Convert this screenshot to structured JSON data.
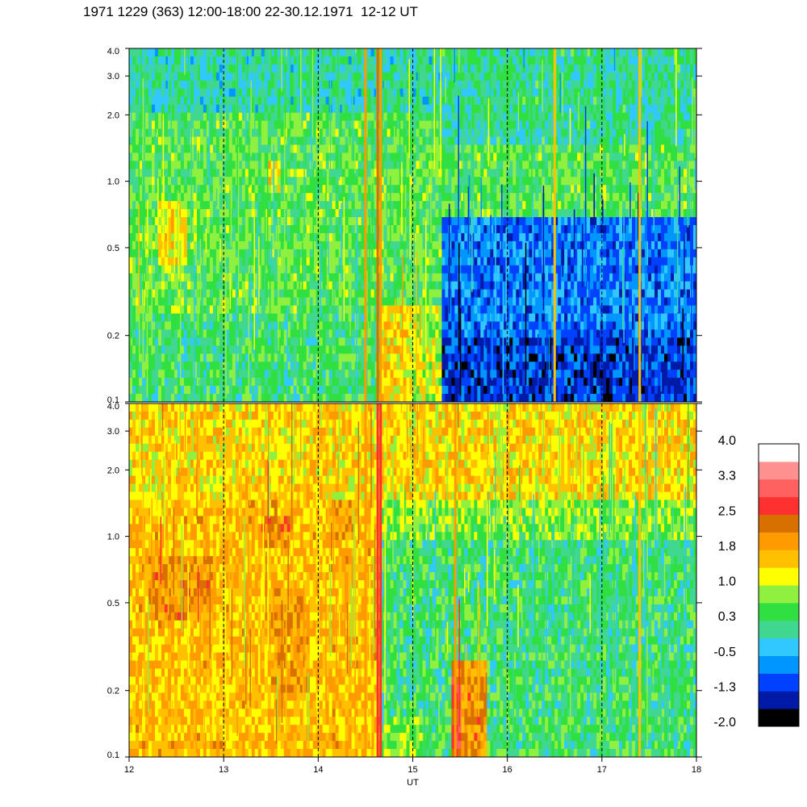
{
  "title": "1971 1229 (363) 12:00-18:00 22-30.12.1971  12-12 UT",
  "chart_data": {
    "type": "heatmap",
    "xlabel": "UT",
    "x_ticks": [
      "12",
      "13",
      "14",
      "15",
      "16",
      "17",
      "18"
    ],
    "xlim": [
      12,
      18
    ],
    "y_scale": "log",
    "ylim": [
      0.1,
      4.0
    ],
    "y_ticks": [
      "0.1",
      "0.2",
      "0.5",
      "1.0",
      "2.0",
      "3.0",
      "4.0"
    ],
    "colorbar": {
      "labels": [
        "4.0",
        "3.3",
        "2.5",
        "1.8",
        "1.0",
        "0.3",
        "-0.5",
        "-1.3",
        "-2.0"
      ],
      "colors": [
        "#000000",
        "#001aa8",
        "#0040ff",
        "#0096ff",
        "#30c8ff",
        "#40d890",
        "#30e040",
        "#90f040",
        "#ffff00",
        "#ffc000",
        "#ff9a00",
        "#d87000",
        "#ff3030",
        "#ff6060",
        "#ff9090",
        "#ffffff"
      ]
    },
    "panels": [
      {
        "name": "top",
        "background_level": 0.5,
        "regions": [
          {
            "x": [
              12.0,
              12.7
            ],
            "y": [
              0.1,
              0.7
            ],
            "level": 0.6
          },
          {
            "x": [
              12.3,
              12.6
            ],
            "y": [
              0.4,
              0.8
            ],
            "level": 1.3
          },
          {
            "x": [
              13.45,
              13.6
            ],
            "y": [
              0.9,
              1.2
            ],
            "level": 1.3
          },
          {
            "x": [
              12.0,
              15.3
            ],
            "y": [
              0.1,
              0.25
            ],
            "level": 0.3
          },
          {
            "x": [
              15.3,
              18.0
            ],
            "y": [
              0.1,
              0.7
            ],
            "level": -0.8
          },
          {
            "x": [
              15.3,
              18.0
            ],
            "y": [
              0.1,
              0.2
            ],
            "level": -1.2
          },
          {
            "x": [
              14.65,
              15.0
            ],
            "y": [
              0.1,
              0.28
            ],
            "level": 1.4
          },
          {
            "x": [
              15.0,
              15.3
            ],
            "y": [
              0.1,
              0.28
            ],
            "level": 1.0
          },
          {
            "x": [
              15.3,
              18.0
            ],
            "y": [
              1.5,
              4.0
            ],
            "level": 0.1
          },
          {
            "x": [
              12.0,
              15.3
            ],
            "y": [
              2.0,
              4.0
            ],
            "level": 0.0
          }
        ],
        "spikes": [
          {
            "x": 14.5,
            "level": 1.9
          },
          {
            "x": 14.63,
            "level": 2.3
          },
          {
            "x": 14.66,
            "level": 2.1
          },
          {
            "x": 16.5,
            "level": 1.4
          },
          {
            "x": 17.4,
            "level": 1.5
          }
        ]
      },
      {
        "name": "bottom",
        "background_level": 0.7,
        "regions": [
          {
            "x": [
              12.0,
              14.65
            ],
            "y": [
              0.1,
              1.5
            ],
            "level": 1.6
          },
          {
            "x": [
              12.2,
              12.9
            ],
            "y": [
              0.4,
              0.8
            ],
            "level": 2.0
          },
          {
            "x": [
              13.4,
              13.7
            ],
            "y": [
              0.85,
              1.2
            ],
            "level": 2.1
          },
          {
            "x": [
              14.1,
              14.4
            ],
            "y": [
              1.0,
              1.5
            ],
            "level": 1.9
          },
          {
            "x": [
              13.5,
              13.9
            ],
            "y": [
              0.2,
              0.6
            ],
            "level": 1.9
          },
          {
            "x": [
              12.0,
              18.0
            ],
            "y": [
              1.5,
              4.0
            ],
            "level": 1.4
          },
          {
            "x": [
              14.65,
              18.0
            ],
            "y": [
              0.1,
              1.0
            ],
            "level": 0.3
          },
          {
            "x": [
              14.7,
              15.1
            ],
            "y": [
              0.1,
              0.15
            ],
            "level": 0.8
          },
          {
            "x": [
              15.4,
              15.8
            ],
            "y": [
              0.1,
              0.27
            ],
            "level": 2.0
          },
          {
            "x": [
              15.4,
              15.52
            ],
            "y": [
              0.1,
              0.24
            ],
            "level": 2.7
          }
        ],
        "spikes": [
          {
            "x": 14.5,
            "level": 1.9
          },
          {
            "x": 14.63,
            "level": 2.6
          },
          {
            "x": 14.66,
            "level": 2.6
          },
          {
            "x": 15.45,
            "level": 2.0
          },
          {
            "x": 17.4,
            "level": 1.5
          }
        ]
      }
    ]
  }
}
